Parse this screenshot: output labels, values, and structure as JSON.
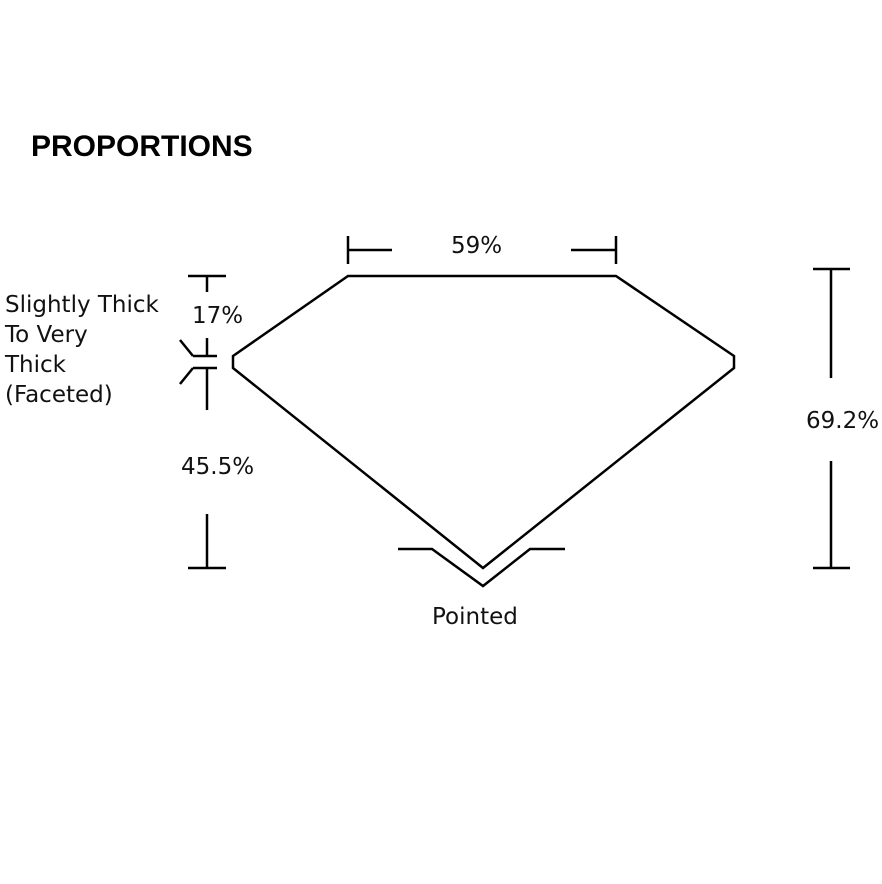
{
  "title": "PROPORTIONS",
  "labels": {
    "table": "59%",
    "crown": "17%",
    "pavilion": "45.5%",
    "total_depth": "69.2%",
    "culet": "Pointed"
  },
  "girdle_description": [
    "Slightly Thick",
    "To Very",
    "Thick",
    "(Faceted)"
  ]
}
